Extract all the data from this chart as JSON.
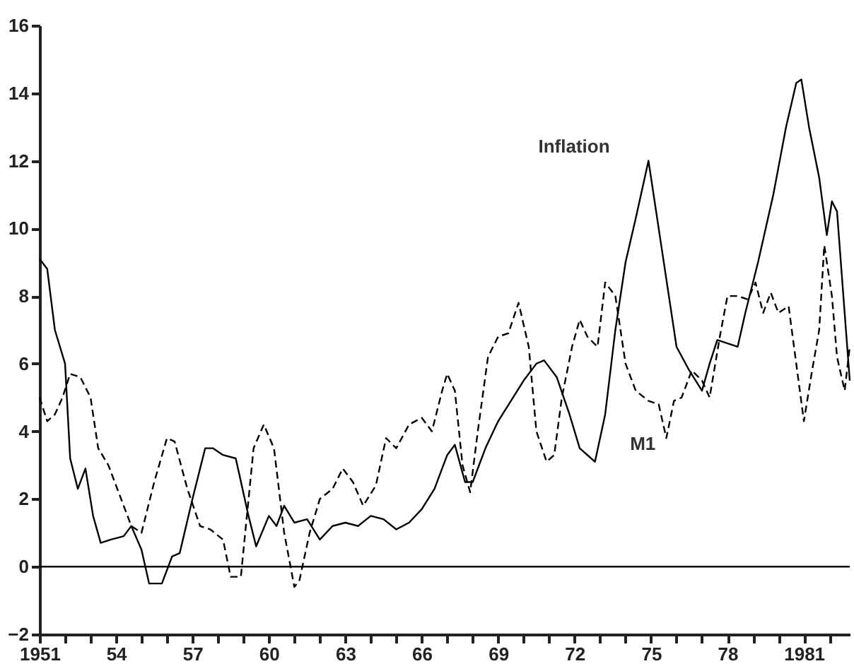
{
  "chart_data": {
    "type": "line",
    "xlim": [
      1951,
      1982.8
    ],
    "ylim": [
      -2,
      16
    ],
    "yticks": [
      -2,
      0,
      2,
      4,
      6,
      8,
      10,
      12,
      14,
      16
    ],
    "xticks": [
      {
        "value": 1951,
        "label": "1951"
      },
      {
        "value": 1952,
        "label": null
      },
      {
        "value": 1953,
        "label": null
      },
      {
        "value": 1954,
        "label": "54"
      },
      {
        "value": 1955,
        "label": null
      },
      {
        "value": 1956,
        "label": null
      },
      {
        "value": 1957,
        "label": "57"
      },
      {
        "value": 1958,
        "label": null
      },
      {
        "value": 1959,
        "label": null
      },
      {
        "value": 1960,
        "label": "60"
      },
      {
        "value": 1961,
        "label": null
      },
      {
        "value": 1962,
        "label": null
      },
      {
        "value": 1963,
        "label": "63"
      },
      {
        "value": 1964,
        "label": null
      },
      {
        "value": 1965,
        "label": null
      },
      {
        "value": 1966,
        "label": "66"
      },
      {
        "value": 1967,
        "label": null
      },
      {
        "value": 1968,
        "label": null
      },
      {
        "value": 1969,
        "label": "69"
      },
      {
        "value": 1970,
        "label": null
      },
      {
        "value": 1971,
        "label": null
      },
      {
        "value": 1972,
        "label": "72"
      },
      {
        "value": 1973,
        "label": null
      },
      {
        "value": 1974,
        "label": null
      },
      {
        "value": 1975,
        "label": "75"
      },
      {
        "value": 1976,
        "label": null
      },
      {
        "value": 1977,
        "label": null
      },
      {
        "value": 1978,
        "label": "78"
      },
      {
        "value": 1979,
        "label": null
      },
      {
        "value": 1980,
        "label": null
      },
      {
        "value": 1981,
        "label": "1981"
      },
      {
        "value": 1982,
        "label": null
      }
    ],
    "grid": false,
    "legend": false,
    "ref_lines": [
      {
        "axis": "y",
        "value": 0,
        "color": "#000000"
      }
    ],
    "annotations": [
      "Inflation",
      "M1"
    ],
    "series": [
      {
        "color": "#000000",
        "line_style": "solid",
        "x": [
          1951.0,
          1951.3,
          1951.6,
          1952.0,
          1952.2,
          1952.5,
          1952.8,
          1953.1,
          1953.4,
          1953.8,
          1954.3,
          1954.6,
          1955.0,
          1955.3,
          1955.8,
          1956.2,
          1956.5,
          1957.0,
          1957.5,
          1957.8,
          1958.2,
          1958.7,
          1959.2,
          1959.5,
          1960.0,
          1960.3,
          1960.6,
          1961.0,
          1961.5,
          1962.0,
          1962.5,
          1963.0,
          1963.5,
          1964.0,
          1964.5,
          1965.0,
          1965.5,
          1966.0,
          1966.5,
          1967.0,
          1967.3,
          1967.7,
          1968.0,
          1968.5,
          1969.0,
          1969.5,
          1970.0,
          1970.5,
          1970.8,
          1971.3,
          1971.8,
          1972.2,
          1972.8,
          1973.2,
          1973.6,
          1974.0,
          1974.4,
          1974.9,
          1975.3,
          1975.7,
          1976.0,
          1976.5,
          1977.0,
          1977.3,
          1977.6,
          1978.0,
          1978.4,
          1978.7,
          1979.2,
          1979.8,
          1980.3,
          1980.7,
          1980.9,
          1981.2,
          1981.6,
          1981.9,
          1982.1,
          1982.3,
          1982.6,
          1982.8
        ],
        "values": [
          9.1,
          8.8,
          7,
          6,
          3.2,
          2.3,
          2.9,
          1.5,
          0.7,
          0.8,
          0.9,
          1.2,
          0.5,
          -0.5,
          -0.5,
          0.3,
          0.4,
          2,
          3.5,
          3.5,
          3.3,
          3.2,
          1.5,
          0.6,
          1.5,
          1.2,
          1.8,
          1.3,
          1.4,
          0.8,
          1.2,
          1.3,
          1.2,
          1.5,
          1.4,
          1.1,
          1.3,
          1.7,
          2.3,
          3.3,
          3.6,
          2.5,
          2.5,
          3.5,
          4.3,
          4.9,
          5.5,
          6.0,
          6.1,
          5.6,
          4.5,
          3.5,
          3.1,
          4.5,
          7,
          9,
          10.3,
          12,
          10,
          8,
          6.5,
          5.8,
          5.2,
          6,
          6.7,
          6.6,
          6.5,
          7.5,
          9,
          11,
          13,
          14.3,
          14.4,
          13,
          11.5,
          9.8,
          10.8,
          10.5,
          7.5,
          5.5
        ]
      },
      {
        "color": "#000000",
        "line_style": "dashed",
        "x": [
          1951.0,
          1951.3,
          1951.6,
          1951.9,
          1952.2,
          1952.6,
          1953.0,
          1953.3,
          1953.7,
          1954.2,
          1954.6,
          1955.0,
          1955.5,
          1956.0,
          1956.3,
          1956.8,
          1957.3,
          1957.7,
          1958.2,
          1958.5,
          1958.9,
          1959.4,
          1959.8,
          1960.2,
          1960.6,
          1961.0,
          1961.2,
          1961.6,
          1962.0,
          1962.5,
          1962.9,
          1963.3,
          1963.7,
          1964.2,
          1964.6,
          1965.0,
          1965.5,
          1966.0,
          1966.4,
          1966.8,
          1967.0,
          1967.3,
          1967.6,
          1967.9,
          1968.2,
          1968.6,
          1969.0,
          1969.4,
          1969.8,
          1970.2,
          1970.5,
          1970.9,
          1971.2,
          1971.5,
          1971.9,
          1972.2,
          1972.5,
          1972.9,
          1973.2,
          1973.6,
          1974.0,
          1974.4,
          1974.9,
          1975.3,
          1975.6,
          1975.9,
          1976.2,
          1976.6,
          1977.0,
          1977.3,
          1977.7,
          1978.0,
          1978.4,
          1978.8,
          1979.1,
          1979.4,
          1979.7,
          1980.0,
          1980.4,
          1980.7,
          1981.0,
          1981.3,
          1981.6,
          1981.8,
          1982.1,
          1982.3,
          1982.6,
          1982.8
        ],
        "values": [
          5.0,
          4.3,
          4.5,
          5.0,
          5.7,
          5.6,
          5.0,
          3.5,
          3.0,
          2.0,
          1.2,
          1.0,
          2.5,
          3.8,
          3.7,
          2.3,
          1.2,
          1.1,
          0.8,
          -0.3,
          -0.3,
          3.5,
          4.2,
          3.5,
          1.0,
          -0.6,
          -0.4,
          1.0,
          2.0,
          2.3,
          2.9,
          2.5,
          1.8,
          2.4,
          3.8,
          3.5,
          4.2,
          4.4,
          4.0,
          5.2,
          5.7,
          5.2,
          3.0,
          2.2,
          4.0,
          6.2,
          6.8,
          6.9,
          7.8,
          6.5,
          4.0,
          3.1,
          3.3,
          5.0,
          6.5,
          7.3,
          6.8,
          6.5,
          8.4,
          8.0,
          6.0,
          5.2,
          4.9,
          4.8,
          3.8,
          4.9,
          5.0,
          5.8,
          5.5,
          5.0,
          6.8,
          8.0,
          8.0,
          7.9,
          8.4,
          7.5,
          8.1,
          7.5,
          7.7,
          6.0,
          4.3,
          5.7,
          7.0,
          9.5,
          8.0,
          6.2,
          5.2,
          6.5
        ]
      }
    ]
  }
}
